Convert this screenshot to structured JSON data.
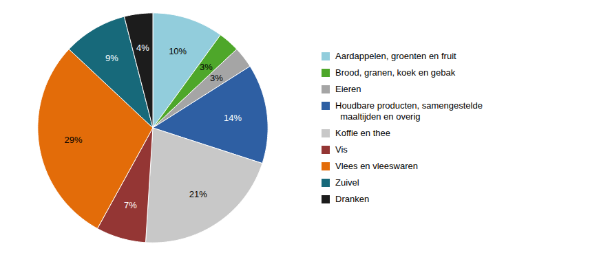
{
  "chart_data": {
    "type": "pie",
    "categories": [
      "Aardappelen, groenten en fruit",
      "Brood, granen, koek en gebak",
      "Eieren",
      "Houdbare producten, samengestelde\n  maaltijden en overig",
      "Koffie en thee",
      "Vis",
      "Vlees en vleeswaren",
      "Zuivel",
      "Dranken"
    ],
    "values": [
      10,
      3,
      3,
      14,
      21,
      7,
      29,
      9,
      4
    ],
    "value_labels": [
      "10%",
      "3%",
      "3%",
      "14%",
      "21%",
      "7%",
      "29%",
      "9%",
      "4%"
    ],
    "colors": [
      "#92CDDC",
      "#4EA72A",
      "#A5A5A5",
      "#2E5FA3",
      "#C8C8C8",
      "#943634",
      "#E36C09",
      "#17697A",
      "#1C1C1C"
    ],
    "data_labels": true,
    "legend": "right"
  }
}
